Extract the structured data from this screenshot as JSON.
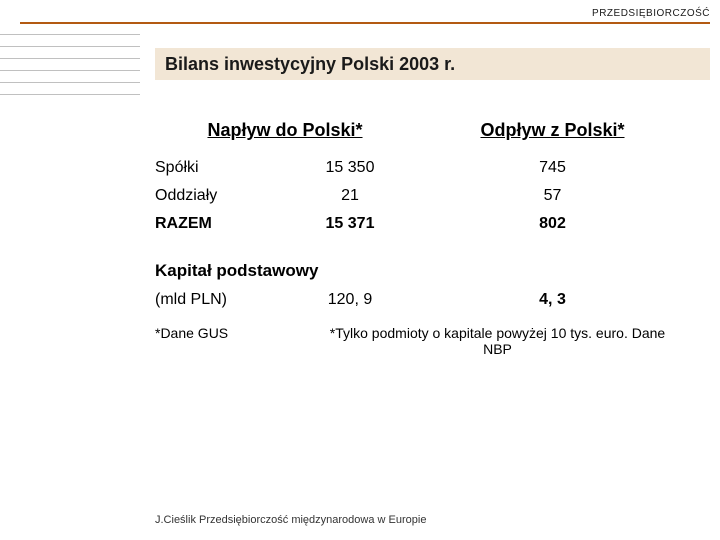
{
  "header": {
    "tag": "PRZEDSIĘBIORCZOŚĆ",
    "rule_color": "#b35a12",
    "title_bg": "#f2e6d5"
  },
  "title": "Bilans inwestycyjny Polski 2003 r.",
  "table": {
    "left_header": "Napływ do Polski*",
    "right_header": "Odpływ z Polski*",
    "rows": [
      {
        "label": "Spółki",
        "left": "15 350",
        "right": "745",
        "bold": false
      },
      {
        "label": "Oddziały",
        "left": "21",
        "right": "57",
        "bold": false
      },
      {
        "label": "RAZEM",
        "left": "15 371",
        "right": "802",
        "bold": true
      }
    ]
  },
  "section2": {
    "title": "Kapitał podstawowy",
    "label": " (mld PLN)",
    "left": "120, 9",
    "right": "4, 3"
  },
  "notes": {
    "left": "*Dane GUS",
    "right": "*Tylko podmioty o kapitale powyżej 10 tys. euro. Dane NBP"
  },
  "footer": "J.Cieślik Przedsiębiorczość międzynarodowa w Europie"
}
